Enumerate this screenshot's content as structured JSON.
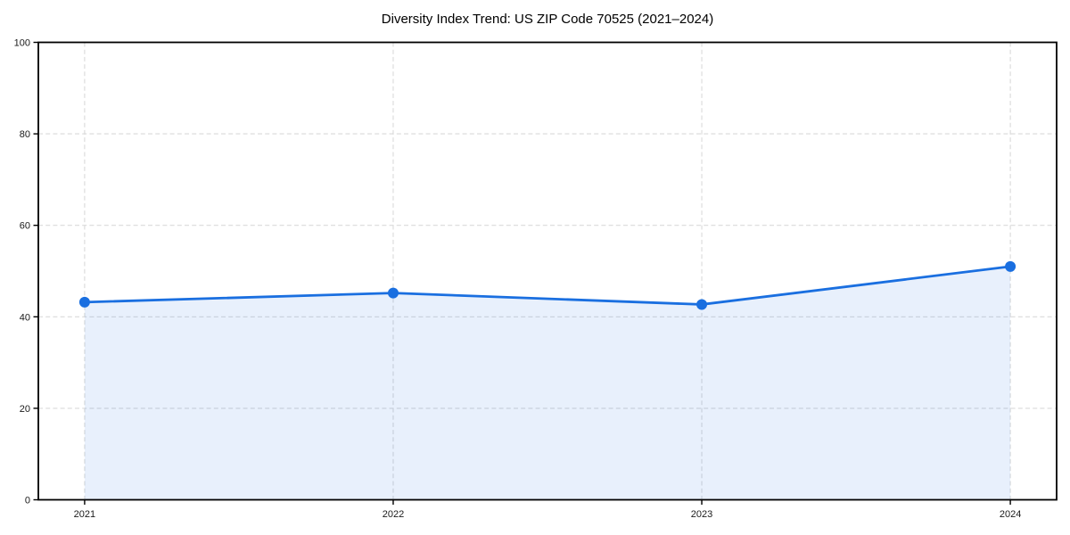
{
  "chart_data": {
    "type": "line",
    "title": "Diversity Index Trend: US ZIP Code 70525 (2021–2024)",
    "xlabel": "",
    "ylabel": "",
    "x": [
      2021,
      2022,
      2023,
      2024
    ],
    "x_tick_labels": [
      "2021",
      "2022",
      "2023",
      "2024"
    ],
    "values": [
      43.2,
      45.2,
      42.7,
      51.0
    ],
    "ylim": [
      0,
      100
    ],
    "xlim": [
      2020.85,
      2024.15
    ],
    "y_ticks": [
      0,
      20,
      40,
      60,
      80,
      100
    ],
    "y_tick_labels": [
      "0",
      "20",
      "40",
      "60",
      "80",
      "100"
    ],
    "grid": "on",
    "grid_style": "dashed",
    "legend": "none",
    "area_fill": "under-line",
    "marker": "circle",
    "colors": {
      "line": "#1a6fe0",
      "marker": "#1a6fe0",
      "fill": "#1a6fe0",
      "fill_opacity": 0.1,
      "grid": "#d9d9d9",
      "spine": "#000000",
      "text": "#1a1a1a"
    }
  }
}
